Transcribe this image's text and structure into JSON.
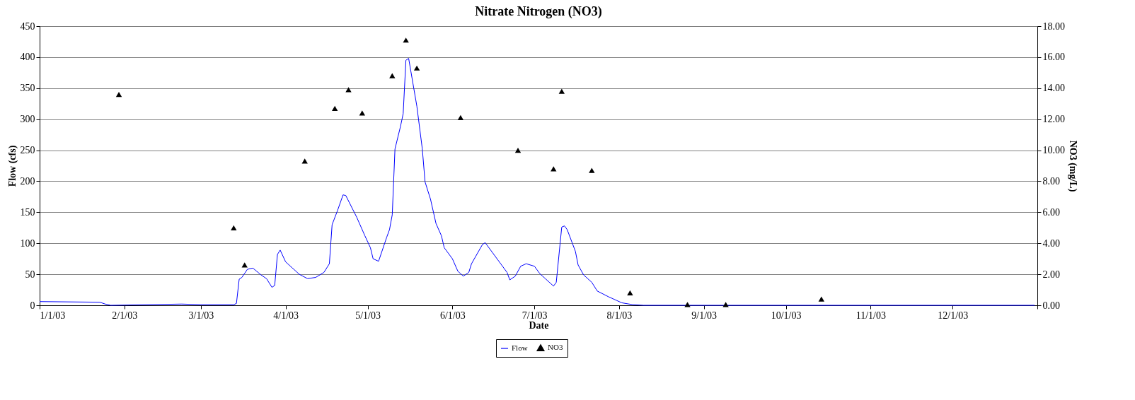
{
  "chart_data": {
    "type": "line",
    "title": "Nitrate Nitrogen (NO3)",
    "xlabel": "Date",
    "ylabel": "Flow (cfs)",
    "y2label": "NO3 (mg/L)",
    "xlim": [
      "2003-01-01",
      "2004-01-01"
    ],
    "xticks": [
      {
        "value": "2003-01-01",
        "label": "1/1/03"
      },
      {
        "value": "2003-02-01",
        "label": "2/1/03"
      },
      {
        "value": "2003-03-01",
        "label": "3/1/03"
      },
      {
        "value": "2003-04-01",
        "label": "4/1/03"
      },
      {
        "value": "2003-05-01",
        "label": "5/1/03"
      },
      {
        "value": "2003-06-01",
        "label": "6/1/03"
      },
      {
        "value": "2003-07-01",
        "label": "7/1/03"
      },
      {
        "value": "2003-08-01",
        "label": "8/1/03"
      },
      {
        "value": "2003-09-01",
        "label": "9/1/03"
      },
      {
        "value": "2003-10-01",
        "label": "10/1/03"
      },
      {
        "value": "2003-11-01",
        "label": "11/1/03"
      },
      {
        "value": "2003-12-01",
        "label": "12/1/03"
      },
      {
        "value": "2004-01-01",
        "label": null
      }
    ],
    "ylim": [
      0,
      450
    ],
    "yticks": [
      0,
      50,
      100,
      150,
      200,
      250,
      300,
      350,
      400,
      450
    ],
    "y2lim": [
      0,
      18
    ],
    "y2ticks": [
      {
        "value": 0,
        "label": "0.00"
      },
      {
        "value": 2,
        "label": "2.00"
      },
      {
        "value": 4,
        "label": "4.00"
      },
      {
        "value": 6,
        "label": "6.00"
      },
      {
        "value": 8,
        "label": "8.00"
      },
      {
        "value": 10,
        "label": "10.00"
      },
      {
        "value": 12,
        "label": "12.00"
      },
      {
        "value": 14,
        "label": "14.00"
      },
      {
        "value": 16,
        "label": "16.00"
      },
      {
        "value": 18,
        "label": "18.00"
      }
    ],
    "grid": "y",
    "legend": "bottom",
    "series": [
      {
        "name": "Flow",
        "type": "line",
        "color": "#0000ff",
        "line_style": "solid",
        "marker": "none",
        "x": [
          "2003-01-01",
          "2003-01-23",
          "2003-01-25",
          "2003-01-27",
          "2003-02-22",
          "2003-03-01",
          "2003-03-13",
          "2003-03-14",
          "2003-03-15",
          "2003-03-16",
          "2003-03-18",
          "2003-03-20",
          "2003-03-23",
          "2003-03-25",
          "2003-03-27",
          "2003-03-28",
          "2003-03-29",
          "2003-03-30",
          "2003-04-01",
          "2003-04-06",
          "2003-04-09",
          "2003-04-12",
          "2003-04-15",
          "2003-04-17",
          "2003-04-18",
          "2003-04-20",
          "2003-04-22",
          "2003-04-23",
          "2003-04-27",
          "2003-04-30",
          "2003-05-02",
          "2003-05-03",
          "2003-05-05",
          "2003-05-08",
          "2003-05-09",
          "2003-05-10",
          "2003-05-11",
          "2003-05-13",
          "2003-05-14",
          "2003-05-15",
          "2003-05-16",
          "2003-05-19",
          "2003-05-21",
          "2003-05-22",
          "2003-05-24",
          "2003-05-26",
          "2003-05-28",
          "2003-05-29",
          "2003-06-01",
          "2003-06-03",
          "2003-06-05",
          "2003-06-07",
          "2003-06-08",
          "2003-06-12",
          "2003-06-13",
          "2003-06-19",
          "2003-06-21",
          "2003-06-22",
          "2003-06-24",
          "2003-06-26",
          "2003-06-28",
          "2003-07-01",
          "2003-07-03",
          "2003-07-05",
          "2003-07-08",
          "2003-07-09",
          "2003-07-11",
          "2003-07-12",
          "2003-07-13",
          "2003-07-16",
          "2003-07-17",
          "2003-07-19",
          "2003-07-22",
          "2003-07-24",
          "2003-07-28",
          "2003-07-31",
          "2003-08-02",
          "2003-08-06",
          "2003-08-10",
          "2003-12-31"
        ],
        "values": [
          6,
          5,
          2,
          0,
          2,
          1,
          1,
          3,
          42,
          45,
          58,
          60,
          49,
          43,
          29,
          32,
          82,
          89,
          70,
          50,
          43,
          45,
          53,
          67,
          130,
          153,
          178,
          177,
          142,
          112,
          93,
          75,
          71,
          110,
          122,
          146,
          252,
          288,
          309,
          395,
          398,
          321,
          252,
          199,
          171,
          132,
          112,
          93,
          75,
          55,
          47,
          53,
          67,
          98,
          101,
          65,
          53,
          41,
          47,
          63,
          67,
          63,
          51,
          43,
          31,
          37,
          126,
          128,
          122,
          87,
          65,
          49,
          37,
          23,
          14,
          8,
          4,
          1,
          0,
          0
        ]
      },
      {
        "name": "NO3",
        "type": "scatter",
        "axis": "y2",
        "color": "#000000",
        "marker": "triangle",
        "x": [
          "2003-01-30",
          "2003-03-13",
          "2003-03-17",
          "2003-04-08",
          "2003-04-19",
          "2003-04-24",
          "2003-04-29",
          "2003-05-10",
          "2003-05-15",
          "2003-05-19",
          "2003-06-04",
          "2003-06-25",
          "2003-07-08",
          "2003-07-11",
          "2003-07-22",
          "2003-08-05",
          "2003-08-26",
          "2003-09-09",
          "2003-10-14"
        ],
        "values": [
          13.6,
          5.0,
          2.6,
          9.3,
          12.7,
          13.9,
          12.4,
          14.8,
          17.1,
          15.3,
          12.1,
          10.0,
          8.8,
          13.8,
          8.7,
          0.8,
          0.05,
          0.05,
          0.4
        ]
      }
    ]
  }
}
